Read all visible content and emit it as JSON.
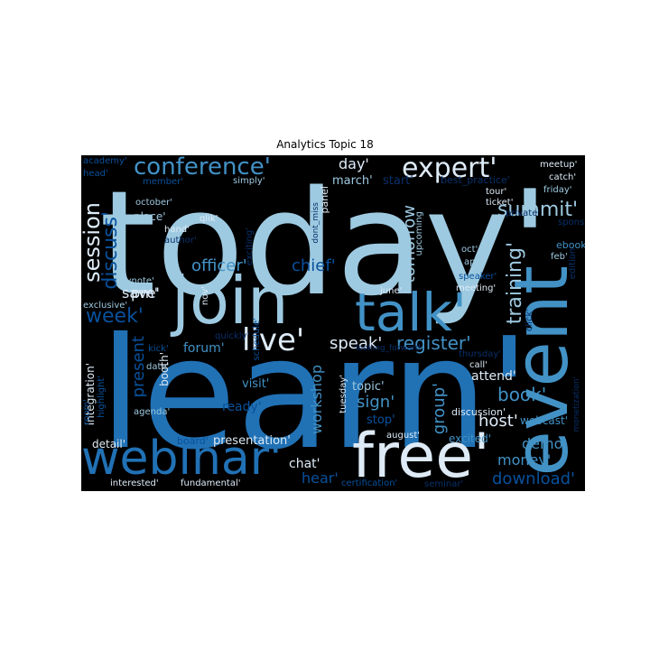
{
  "title": "Analytics Topic 18",
  "palette": {
    "background": "#000000",
    "light": "#9ecae1",
    "lightest": "#deebf7",
    "mid": "#6baed6",
    "strong": "#4292c6",
    "deep": "#2171b5",
    "dark": "#08519c",
    "darkest": "#08306b"
  },
  "words": [
    {
      "text": "today'",
      "tone": "light"
    },
    {
      "text": "learn'",
      "tone": "deep"
    },
    {
      "text": "join",
      "tone": "light"
    },
    {
      "text": "talk'",
      "tone": "strong"
    },
    {
      "text": "event",
      "tone": "strong"
    },
    {
      "text": "free'",
      "tone": "lightest"
    },
    {
      "text": "webinar'",
      "tone": "deep"
    },
    {
      "text": "expert'",
      "tone": "lightest"
    },
    {
      "text": "conference'",
      "tone": "strong"
    },
    {
      "text": "live'",
      "tone": "lightest"
    },
    {
      "text": "session",
      "tone": "lightest"
    },
    {
      "text": "summit'",
      "tone": "light"
    },
    {
      "text": "discuss'",
      "tone": "dark"
    },
    {
      "text": "officer'",
      "tone": "strong"
    },
    {
      "text": "chief'",
      "tone": "dark"
    },
    {
      "text": "register'",
      "tone": "strong"
    },
    {
      "text": "speak'",
      "tone": "lightest"
    },
    {
      "text": "training'",
      "tone": "light"
    },
    {
      "text": "tomorrow",
      "tone": "light"
    },
    {
      "text": "week'",
      "tone": "dark"
    },
    {
      "text": "pm'",
      "tone": "lightest"
    },
    {
      "text": "save'",
      "tone": "lightest"
    },
    {
      "text": "present",
      "tone": "dark"
    },
    {
      "text": "forum'",
      "tone": "strong"
    },
    {
      "text": "workshop",
      "tone": "strong"
    },
    {
      "text": "book'",
      "tone": "strong"
    },
    {
      "text": "sign'",
      "tone": "strong"
    },
    {
      "text": "group'",
      "tone": "strong"
    },
    {
      "text": "host'",
      "tone": "lightest"
    },
    {
      "text": "attend'",
      "tone": "lightest"
    },
    {
      "text": "demo'",
      "tone": "strong"
    },
    {
      "text": "money'",
      "tone": "strong"
    },
    {
      "text": "download'",
      "tone": "dark"
    },
    {
      "text": "hear'",
      "tone": "dark"
    },
    {
      "text": "chat'",
      "tone": "lightest"
    },
    {
      "text": "presentation'",
      "tone": "lightest"
    },
    {
      "text": "day'",
      "tone": "lightest"
    },
    {
      "text": "march'",
      "tone": "light"
    },
    {
      "text": "start'",
      "tone": "darkest"
    },
    {
      "text": "best_practice'",
      "tone": "darkest"
    },
    {
      "text": "meetup'",
      "tone": "lightest"
    },
    {
      "text": "catch'",
      "tone": "lightest"
    },
    {
      "text": "friday'",
      "tone": "light"
    },
    {
      "text": "ticket'",
      "tone": "lightest"
    },
    {
      "text": "tour'",
      "tone": "lightest"
    },
    {
      "text": "private'",
      "tone": "darkest"
    },
    {
      "text": "sponsor'",
      "tone": "darkest"
    },
    {
      "text": "ebook'",
      "tone": "strong"
    },
    {
      "text": "oct'",
      "tone": "light"
    },
    {
      "text": "april'",
      "tone": "light"
    },
    {
      "text": "feb'",
      "tone": "light"
    },
    {
      "text": "edition'",
      "tone": "darkest"
    },
    {
      "text": "speaker'",
      "tone": "dark"
    },
    {
      "text": "meeting'",
      "tone": "lightest"
    },
    {
      "text": "click'",
      "tone": "darkest"
    },
    {
      "text": "upcoming",
      "tone": "light"
    },
    {
      "text": "panel",
      "tone": "lightest"
    },
    {
      "text": "dont_miss",
      "tone": "darkest"
    },
    {
      "text": "academy'",
      "tone": "dark"
    },
    {
      "text": "head'",
      "tone": "dark"
    },
    {
      "text": "member'",
      "tone": "dark"
    },
    {
      "text": "simply'",
      "tone": "light"
    },
    {
      "text": "october'",
      "tone": "light"
    },
    {
      "text": "place'",
      "tone": "light"
    },
    {
      "text": "hand'",
      "tone": "lightest"
    },
    {
      "text": "author'",
      "tone": "darkest"
    },
    {
      "text": "qlik'",
      "tone": "lightest"
    },
    {
      "text": "exciting'",
      "tone": "darkest"
    },
    {
      "text": "keynote'",
      "tone": "light"
    },
    {
      "text": "exclusive'",
      "tone": "light"
    },
    {
      "text": "nov'",
      "tone": "lightest"
    },
    {
      "text": "quickly'",
      "tone": "darkest"
    },
    {
      "text": "schedule'",
      "tone": "dark"
    },
    {
      "text": "june'",
      "tone": "lightest"
    },
    {
      "text": "looking_forward",
      "tone": "darkest"
    },
    {
      "text": "thursday'",
      "tone": "darkest"
    },
    {
      "text": "call'",
      "tone": "lightest"
    },
    {
      "text": "kick'",
      "tone": "dark"
    },
    {
      "text": "integration'",
      "tone": "lightest"
    },
    {
      "text": "highlight'",
      "tone": "dark"
    },
    {
      "text": "room'",
      "tone": "dark"
    },
    {
      "text": "date'",
      "tone": "light"
    },
    {
      "text": "booth'",
      "tone": "lightest"
    },
    {
      "text": "agenda'",
      "tone": "light"
    },
    {
      "text": "visit'",
      "tone": "strong"
    },
    {
      "text": "ready'",
      "tone": "dark"
    },
    {
      "text": "topic'",
      "tone": "light"
    },
    {
      "text": "tuesday'",
      "tone": "lightest"
    },
    {
      "text": "stop'",
      "tone": "dark"
    },
    {
      "text": "discussion'",
      "tone": "lightest"
    },
    {
      "text": "webcast'",
      "tone": "strong"
    },
    {
      "text": "monetization'",
      "tone": "darkest"
    },
    {
      "text": "august'",
      "tone": "lightest"
    },
    {
      "text": "excited'",
      "tone": "strong"
    },
    {
      "text": "detail'",
      "tone": "lightest"
    },
    {
      "text": "board'",
      "tone": "dark"
    },
    {
      "text": "interested'",
      "tone": "lightest"
    },
    {
      "text": "fundamental'",
      "tone": "lightest"
    },
    {
      "text": "certification'",
      "tone": "dark"
    },
    {
      "text": "seminar'",
      "tone": "darkest"
    }
  ]
}
